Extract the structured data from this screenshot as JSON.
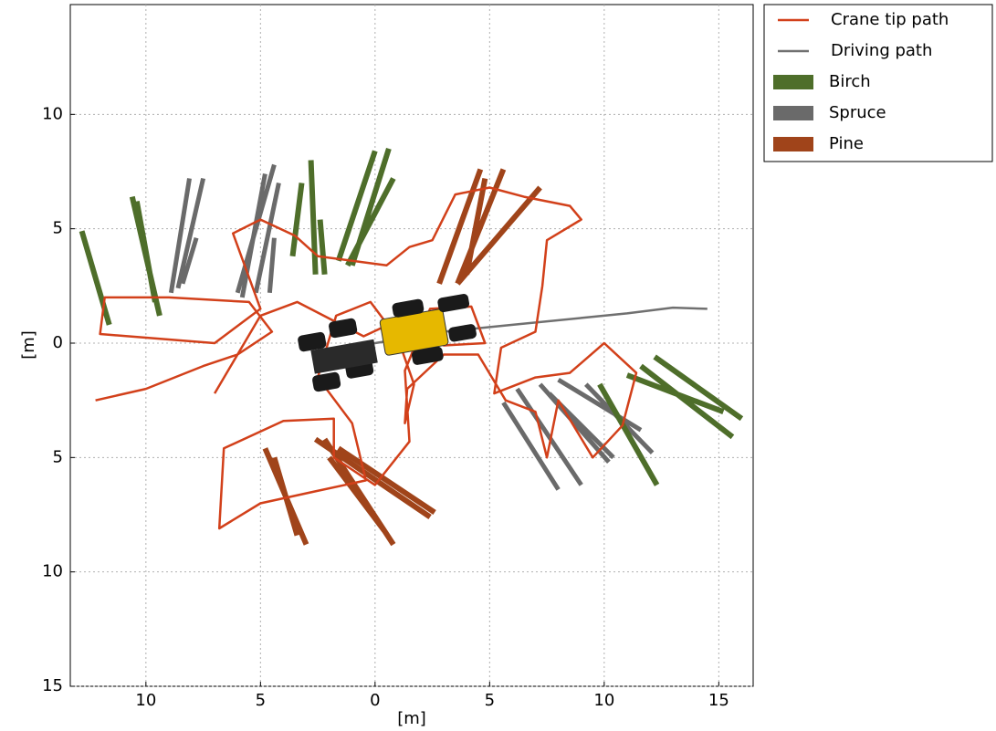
{
  "chart_data": {
    "type": "line",
    "xlabel": "[m]",
    "ylabel": "[m]",
    "xlim": [
      -13.3,
      16.5
    ],
    "ylim": [
      -15,
      14.8
    ],
    "xticks": [
      {
        "value": -10,
        "label": "10"
      },
      {
        "value": -5,
        "label": "5"
      },
      0,
      5,
      10,
      15
    ],
    "yticks": [
      {
        "value": -15,
        "label": "15"
      },
      {
        "value": -10,
        "label": "10"
      },
      {
        "value": -5,
        "label": "5"
      },
      0,
      5,
      10
    ],
    "grid": true,
    "legend": "outside upper right",
    "series": [
      {
        "name": "Crane tip path",
        "color": "#d2401a",
        "linewidth": 2.5,
        "x": [
          -12.2,
          -10,
          -7.5,
          -6,
          -4.5,
          -5.5,
          -9,
          -11.8,
          -12,
          -9.5,
          -7,
          -5,
          -6.2,
          -5,
          -3.5,
          -2.5,
          0.5,
          1.5,
          2.5,
          3.5,
          5,
          6.5,
          8.5,
          9,
          7.5,
          7.3,
          7,
          5.5,
          5.2,
          7,
          8.5,
          10,
          11.4,
          10.8,
          9.5,
          8,
          7.5,
          7,
          5.7,
          4.5,
          3,
          1.4,
          1.3,
          1.7,
          1,
          -0.2,
          -1.7,
          -2.5,
          -1,
          -0.4,
          -2.7,
          -5,
          -6.8,
          -6.6,
          -4,
          -1.8,
          -1.8,
          0,
          1.5,
          1.3,
          2.4,
          4.2,
          4.8,
          3,
          1,
          -0.5,
          -3.4,
          -5,
          -7
        ],
        "y": [
          -2.5,
          -2,
          -1,
          -0.5,
          0.5,
          1.8,
          2,
          2,
          0.4,
          0.2,
          0,
          1.5,
          4.8,
          5.4,
          4.7,
          3.8,
          3.4,
          4.2,
          4.5,
          6.5,
          6.8,
          6.4,
          6,
          5.4,
          4.5,
          2.5,
          0.5,
          -0.2,
          -2.2,
          -1.5,
          -1.3,
          0,
          -1.3,
          -3.6,
          -5,
          -2.5,
          -5,
          -3,
          -2.5,
          -0.5,
          -0.5,
          -2,
          -3.5,
          -1.8,
          0.2,
          1.8,
          1.2,
          -1.5,
          -3.5,
          -6,
          -6.5,
          -7,
          -8.1,
          -4.6,
          -3.4,
          -3.3,
          -5,
          -6.2,
          -4.3,
          -1.2,
          1.5,
          1.6,
          0,
          -0.1,
          1,
          0.3,
          1.8,
          1.2,
          -2.2
        ]
      },
      {
        "name": "Driving path",
        "color": "#707070",
        "linewidth": 2.5,
        "x": [
          -2.5,
          0,
          3,
          6,
          9,
          11,
          13,
          14.5
        ],
        "y": [
          -0.3,
          0,
          0.5,
          0.8,
          1.1,
          1.3,
          1.55,
          1.5
        ]
      },
      {
        "name": "Birch",
        "color": "#4e6e2a",
        "linewidth": 6,
        "x": [
          -12.8,
          -11.6,
          null,
          -10.6,
          -9.4,
          null,
          -10.4,
          -9.6,
          null,
          -2.8,
          -2.6,
          null,
          -3.2,
          -3.6,
          null,
          0,
          -1.6,
          null,
          0.6,
          -1,
          null,
          0.8,
          -1.2,
          null,
          -2.4,
          -2.2,
          null,
          12.2,
          16,
          null,
          11.6,
          15.6,
          null,
          11,
          15.2,
          null,
          9.8,
          12.3
        ],
        "y": [
          4.9,
          0.8,
          null,
          6.4,
          1.2,
          null,
          6.2,
          1.8,
          null,
          8,
          3,
          null,
          7,
          3.8,
          null,
          8.4,
          3.6,
          null,
          8.5,
          3.4,
          null,
          7.2,
          3.4,
          null,
          5.4,
          3,
          null,
          -0.6,
          -3.3,
          null,
          -1,
          -4.1,
          null,
          -1.4,
          -3,
          null,
          -1.8,
          -6.2
        ]
      },
      {
        "name": "Spruce",
        "color": "#6a6a6a",
        "linewidth": 5,
        "x": [
          -8.1,
          -8.9,
          null,
          -7.5,
          -8.6,
          null,
          -7.8,
          -8.4,
          null,
          -4.4,
          -6,
          null,
          -4.8,
          -5.8,
          null,
          -4.2,
          -5.2,
          null,
          -4.4,
          -4.6,
          null,
          5.6,
          8,
          null,
          6.2,
          9,
          null,
          7.2,
          10.2,
          null,
          8,
          11.6,
          null,
          7.6,
          10.4,
          null,
          9.2,
          12.1
        ],
        "y": [
          7.2,
          2.2,
          null,
          7.2,
          2.4,
          null,
          4.6,
          2.6,
          null,
          7.8,
          2.2,
          null,
          7.4,
          2,
          null,
          7,
          2.2,
          null,
          4.6,
          2.2,
          null,
          -2.6,
          -6.4,
          null,
          -2,
          -6.2,
          null,
          -1.8,
          -5.2,
          null,
          -1.6,
          -3.8,
          null,
          -2.2,
          -5,
          null,
          -1.8,
          -4.8
        ]
      },
      {
        "name": "Pine",
        "color": "#a0441a",
        "linewidth": 6,
        "x": [
          4.6,
          2.8,
          null,
          5.6,
          3.6,
          null,
          7.2,
          3.6,
          null,
          4.8,
          4,
          null,
          -2.6,
          2.4,
          null,
          -2.2,
          0.8,
          null,
          -1.6,
          2.6,
          null,
          -2,
          0.4,
          null,
          -4.8,
          -3,
          null,
          -4.4,
          -3.4
        ],
        "y": [
          7.6,
          2.6,
          null,
          7.6,
          2.6,
          null,
          6.8,
          2.6,
          null,
          7.2,
          3,
          null,
          -4.2,
          -7.6,
          null,
          -4.2,
          -8.8,
          null,
          -4.6,
          -7.4,
          null,
          -5,
          -8.2,
          null,
          -4.6,
          -8.8,
          null,
          -5,
          -8.4
        ]
      }
    ]
  }
}
